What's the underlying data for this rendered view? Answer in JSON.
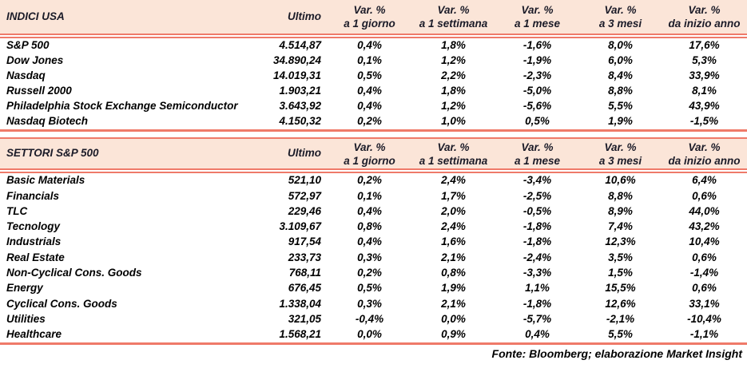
{
  "colors": {
    "header_bg": "#FBE5D8",
    "accent_line": "#EF7A69",
    "header_text": "#1B1B28",
    "body_text": "#000000"
  },
  "footer": "Fonte: Bloomberg; elaborazione Market Insight",
  "table1": {
    "title": "INDICI USA",
    "col_ultimo": "Ultimo",
    "var_cols": [
      {
        "line1": "Var. %",
        "line2": "a 1 giorno"
      },
      {
        "line1": "Var. %",
        "line2": "a 1 settimana"
      },
      {
        "line1": "Var. %",
        "line2": "a 1 mese"
      },
      {
        "line1": "Var. %",
        "line2": "a 3 mesi"
      },
      {
        "line1": "Var. %",
        "line2": "da inizio anno"
      }
    ],
    "rows": [
      {
        "name": "S&P 500",
        "ultimo": "4.514,87",
        "vars": [
          "0,4%",
          "1,8%",
          "-1,6%",
          "8,0%",
          "17,6%"
        ]
      },
      {
        "name": "Dow Jones",
        "ultimo": "34.890,24",
        "vars": [
          "0,1%",
          "1,2%",
          "-1,9%",
          "6,0%",
          "5,3%"
        ]
      },
      {
        "name": "Nasdaq",
        "ultimo": "14.019,31",
        "vars": [
          "0,5%",
          "2,2%",
          "-2,3%",
          "8,4%",
          "33,9%"
        ]
      },
      {
        "name": "Russell 2000",
        "ultimo": "1.903,21",
        "vars": [
          "0,4%",
          "1,8%",
          "-5,0%",
          "8,8%",
          "8,1%"
        ]
      },
      {
        "name": "Philadelphia Stock Exchange Semiconductor",
        "ultimo": "3.643,92",
        "vars": [
          "0,4%",
          "1,2%",
          "-5,6%",
          "5,5%",
          "43,9%"
        ]
      },
      {
        "name": "Nasdaq Biotech",
        "ultimo": "4.150,32",
        "vars": [
          "0,2%",
          "1,0%",
          "0,5%",
          "1,9%",
          "-1,5%"
        ]
      }
    ]
  },
  "table2": {
    "title": "SETTORI S&P 500",
    "col_ultimo": "Ultimo",
    "var_cols": [
      {
        "line1": "Var. %",
        "line2": "a 1 giorno"
      },
      {
        "line1": "Var. %",
        "line2": "a 1 settimana"
      },
      {
        "line1": "Var. %",
        "line2": "a 1 mese"
      },
      {
        "line1": "Var. %",
        "line2": "a 3 mesi"
      },
      {
        "line1": "Var. %",
        "line2": "da inizio anno"
      }
    ],
    "rows": [
      {
        "name": "Basic Materials",
        "ultimo": "521,10",
        "vars": [
          "0,2%",
          "2,4%",
          "-3,4%",
          "10,6%",
          "6,4%"
        ]
      },
      {
        "name": "Financials",
        "ultimo": "572,97",
        "vars": [
          "0,1%",
          "1,7%",
          "-2,5%",
          "8,8%",
          "0,6%"
        ]
      },
      {
        "name": "TLC",
        "ultimo": "229,46",
        "vars": [
          "0,4%",
          "2,0%",
          "-0,5%",
          "8,9%",
          "44,0%"
        ]
      },
      {
        "name": "Tecnology",
        "ultimo": "3.109,67",
        "vars": [
          "0,8%",
          "2,4%",
          "-1,8%",
          "7,4%",
          "43,2%"
        ]
      },
      {
        "name": "Industrials",
        "ultimo": "917,54",
        "vars": [
          "0,4%",
          "1,6%",
          "-1,8%",
          "12,3%",
          "10,4%"
        ]
      },
      {
        "name": "Real Estate",
        "ultimo": "233,73",
        "vars": [
          "0,3%",
          "2,1%",
          "-2,4%",
          "3,5%",
          "0,6%"
        ]
      },
      {
        "name": "Non-Cyclical Cons. Goods",
        "ultimo": "768,11",
        "vars": [
          "0,2%",
          "0,8%",
          "-3,3%",
          "1,5%",
          "-1,4%"
        ]
      },
      {
        "name": "Energy",
        "ultimo": "676,45",
        "vars": [
          "0,5%",
          "1,9%",
          "1,1%",
          "15,5%",
          "0,6%"
        ]
      },
      {
        "name": "Cyclical Cons. Goods",
        "ultimo": "1.338,04",
        "vars": [
          "0,3%",
          "2,1%",
          "-1,8%",
          "12,6%",
          "33,1%"
        ]
      },
      {
        "name": "Utilities",
        "ultimo": "321,05",
        "vars": [
          "-0,4%",
          "0,0%",
          "-5,7%",
          "-2,1%",
          "-10,4%"
        ]
      },
      {
        "name": "Healthcare",
        "ultimo": "1.568,21",
        "vars": [
          "0,0%",
          "0,9%",
          "0,4%",
          "5,5%",
          "-1,1%"
        ]
      }
    ]
  }
}
